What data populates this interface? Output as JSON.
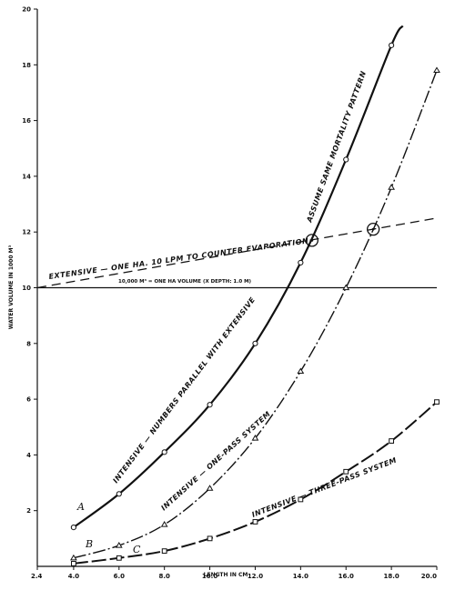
{
  "chart_data": {
    "type": "line",
    "xlabel": "LENGTH IN CM",
    "ylabel": "WATER VOLUME IN 1000 M³",
    "xlim": [
      2.4,
      20.0
    ],
    "ylim": [
      0,
      20
    ],
    "x_ticks": [
      "2.4",
      "4.0",
      "6.0",
      "8.0",
      "10.0",
      "12.0",
      "14.0",
      "16.0",
      "18.0",
      "20.0"
    ],
    "y_ticks": [
      "2",
      "4",
      "6",
      "8",
      "10",
      "12",
      "14",
      "16",
      "18",
      "20"
    ],
    "series": [
      {
        "key": "A",
        "style": "solid",
        "marker": "circle",
        "x": [
          4,
          6,
          8,
          10,
          12,
          14,
          16,
          18
        ],
        "y": [
          1.4,
          2.6,
          4.1,
          5.8,
          8.0,
          10.9,
          14.6,
          18.7
        ],
        "extend_to": [
          18.5,
          19.4
        ]
      },
      {
        "key": "B",
        "style": "dash-dot",
        "marker": "triangle",
        "x": [
          4,
          6,
          8,
          10,
          12,
          14,
          16,
          18,
          20
        ],
        "y": [
          0.3,
          0.75,
          1.5,
          2.8,
          4.6,
          7.0,
          10.0,
          13.6,
          17.8
        ]
      },
      {
        "key": "C",
        "style": "long-dash",
        "marker": "square",
        "x": [
          4,
          6,
          8,
          10,
          12,
          14,
          16,
          18,
          20
        ],
        "y": [
          0.1,
          0.3,
          0.55,
          1.0,
          1.6,
          2.4,
          3.4,
          4.5,
          5.9
        ]
      }
    ],
    "evaporation_line": {
      "style": "dashed",
      "x": [
        2.4,
        20.0
      ],
      "y": [
        10.0,
        12.5
      ]
    },
    "reference_line": {
      "style": "solid",
      "y": 10.0
    },
    "intersections": [
      {
        "x": 14.5,
        "y": 11.7
      },
      {
        "x": 17.2,
        "y": 12.1
      }
    ],
    "annotations": {
      "extensive": "EXTENSIVE — ONE HA. 10 LPM TO COUNTER EVAPORATION",
      "one_ha": "10,000 M³ = ONE HA VOLUME (X DEPTH: 1.0 M)",
      "assume": "ASSUME SAME MORTALITY PATTERN",
      "intensive_parallel": "INTENSIVE — NUMBERS PARALLEL WITH EXTENSIVE",
      "intensive_one_pass": "INTENSIVE — ONE-PASS SYSTEM",
      "intensive_three_pass": "INTENSIVE — THREE-PASS SYSTEM",
      "label_a": "A",
      "label_b": "B",
      "label_c": "C"
    }
  }
}
